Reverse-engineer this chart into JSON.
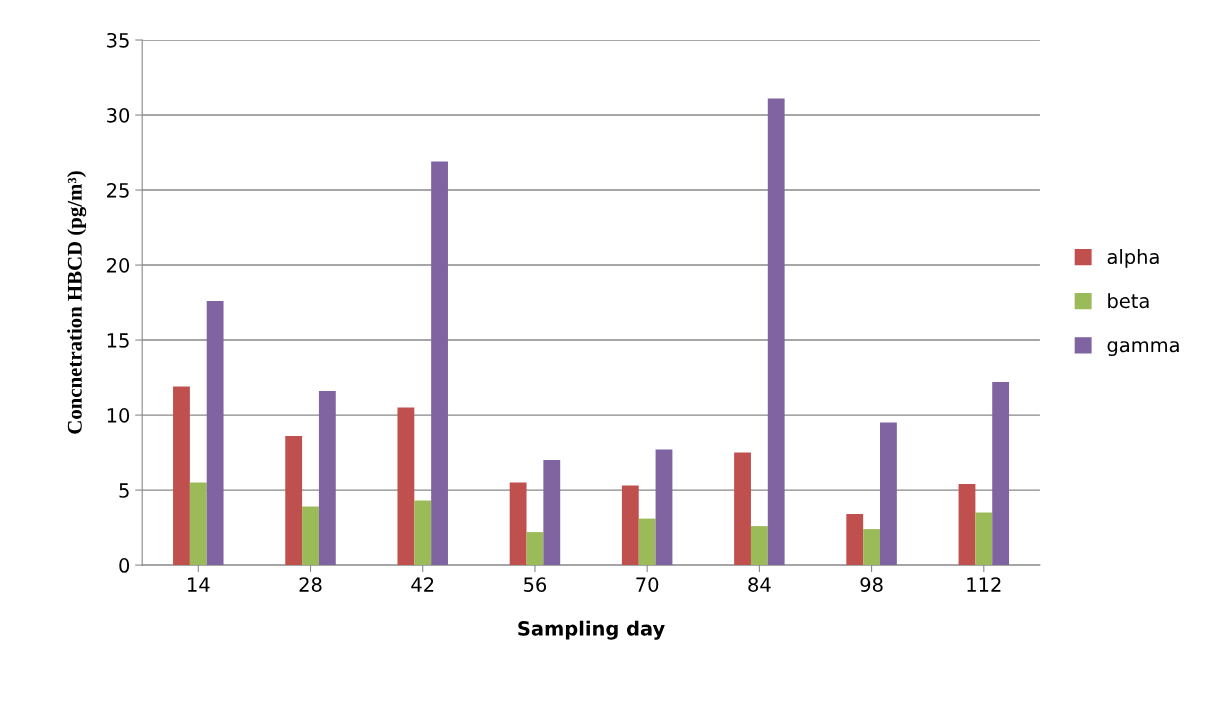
{
  "chart_data": {
    "type": "bar",
    "xlabel": "Sampling day",
    "ylabel": "Concnetration HBCD (pg/m³)",
    "categories": [
      "14",
      "28",
      "42",
      "56",
      "70",
      "84",
      "98",
      "112"
    ],
    "series": [
      {
        "name": "alpha",
        "color": "#c0504d",
        "values": [
          11.9,
          8.6,
          10.5,
          5.5,
          5.3,
          7.5,
          3.4,
          5.4
        ]
      },
      {
        "name": "beta",
        "color": "#9bbb59",
        "values": [
          5.5,
          3.9,
          4.3,
          2.2,
          3.1,
          2.6,
          2.4,
          3.5
        ]
      },
      {
        "name": "gamma",
        "color": "#8064a2",
        "values": [
          17.6,
          11.6,
          26.9,
          7.0,
          7.7,
          31.1,
          9.5,
          12.2
        ]
      }
    ],
    "ylim": [
      0,
      35
    ],
    "yticks": [
      0,
      5,
      10,
      15,
      20,
      25,
      30,
      35
    ],
    "grid": "y",
    "legend": "right"
  }
}
